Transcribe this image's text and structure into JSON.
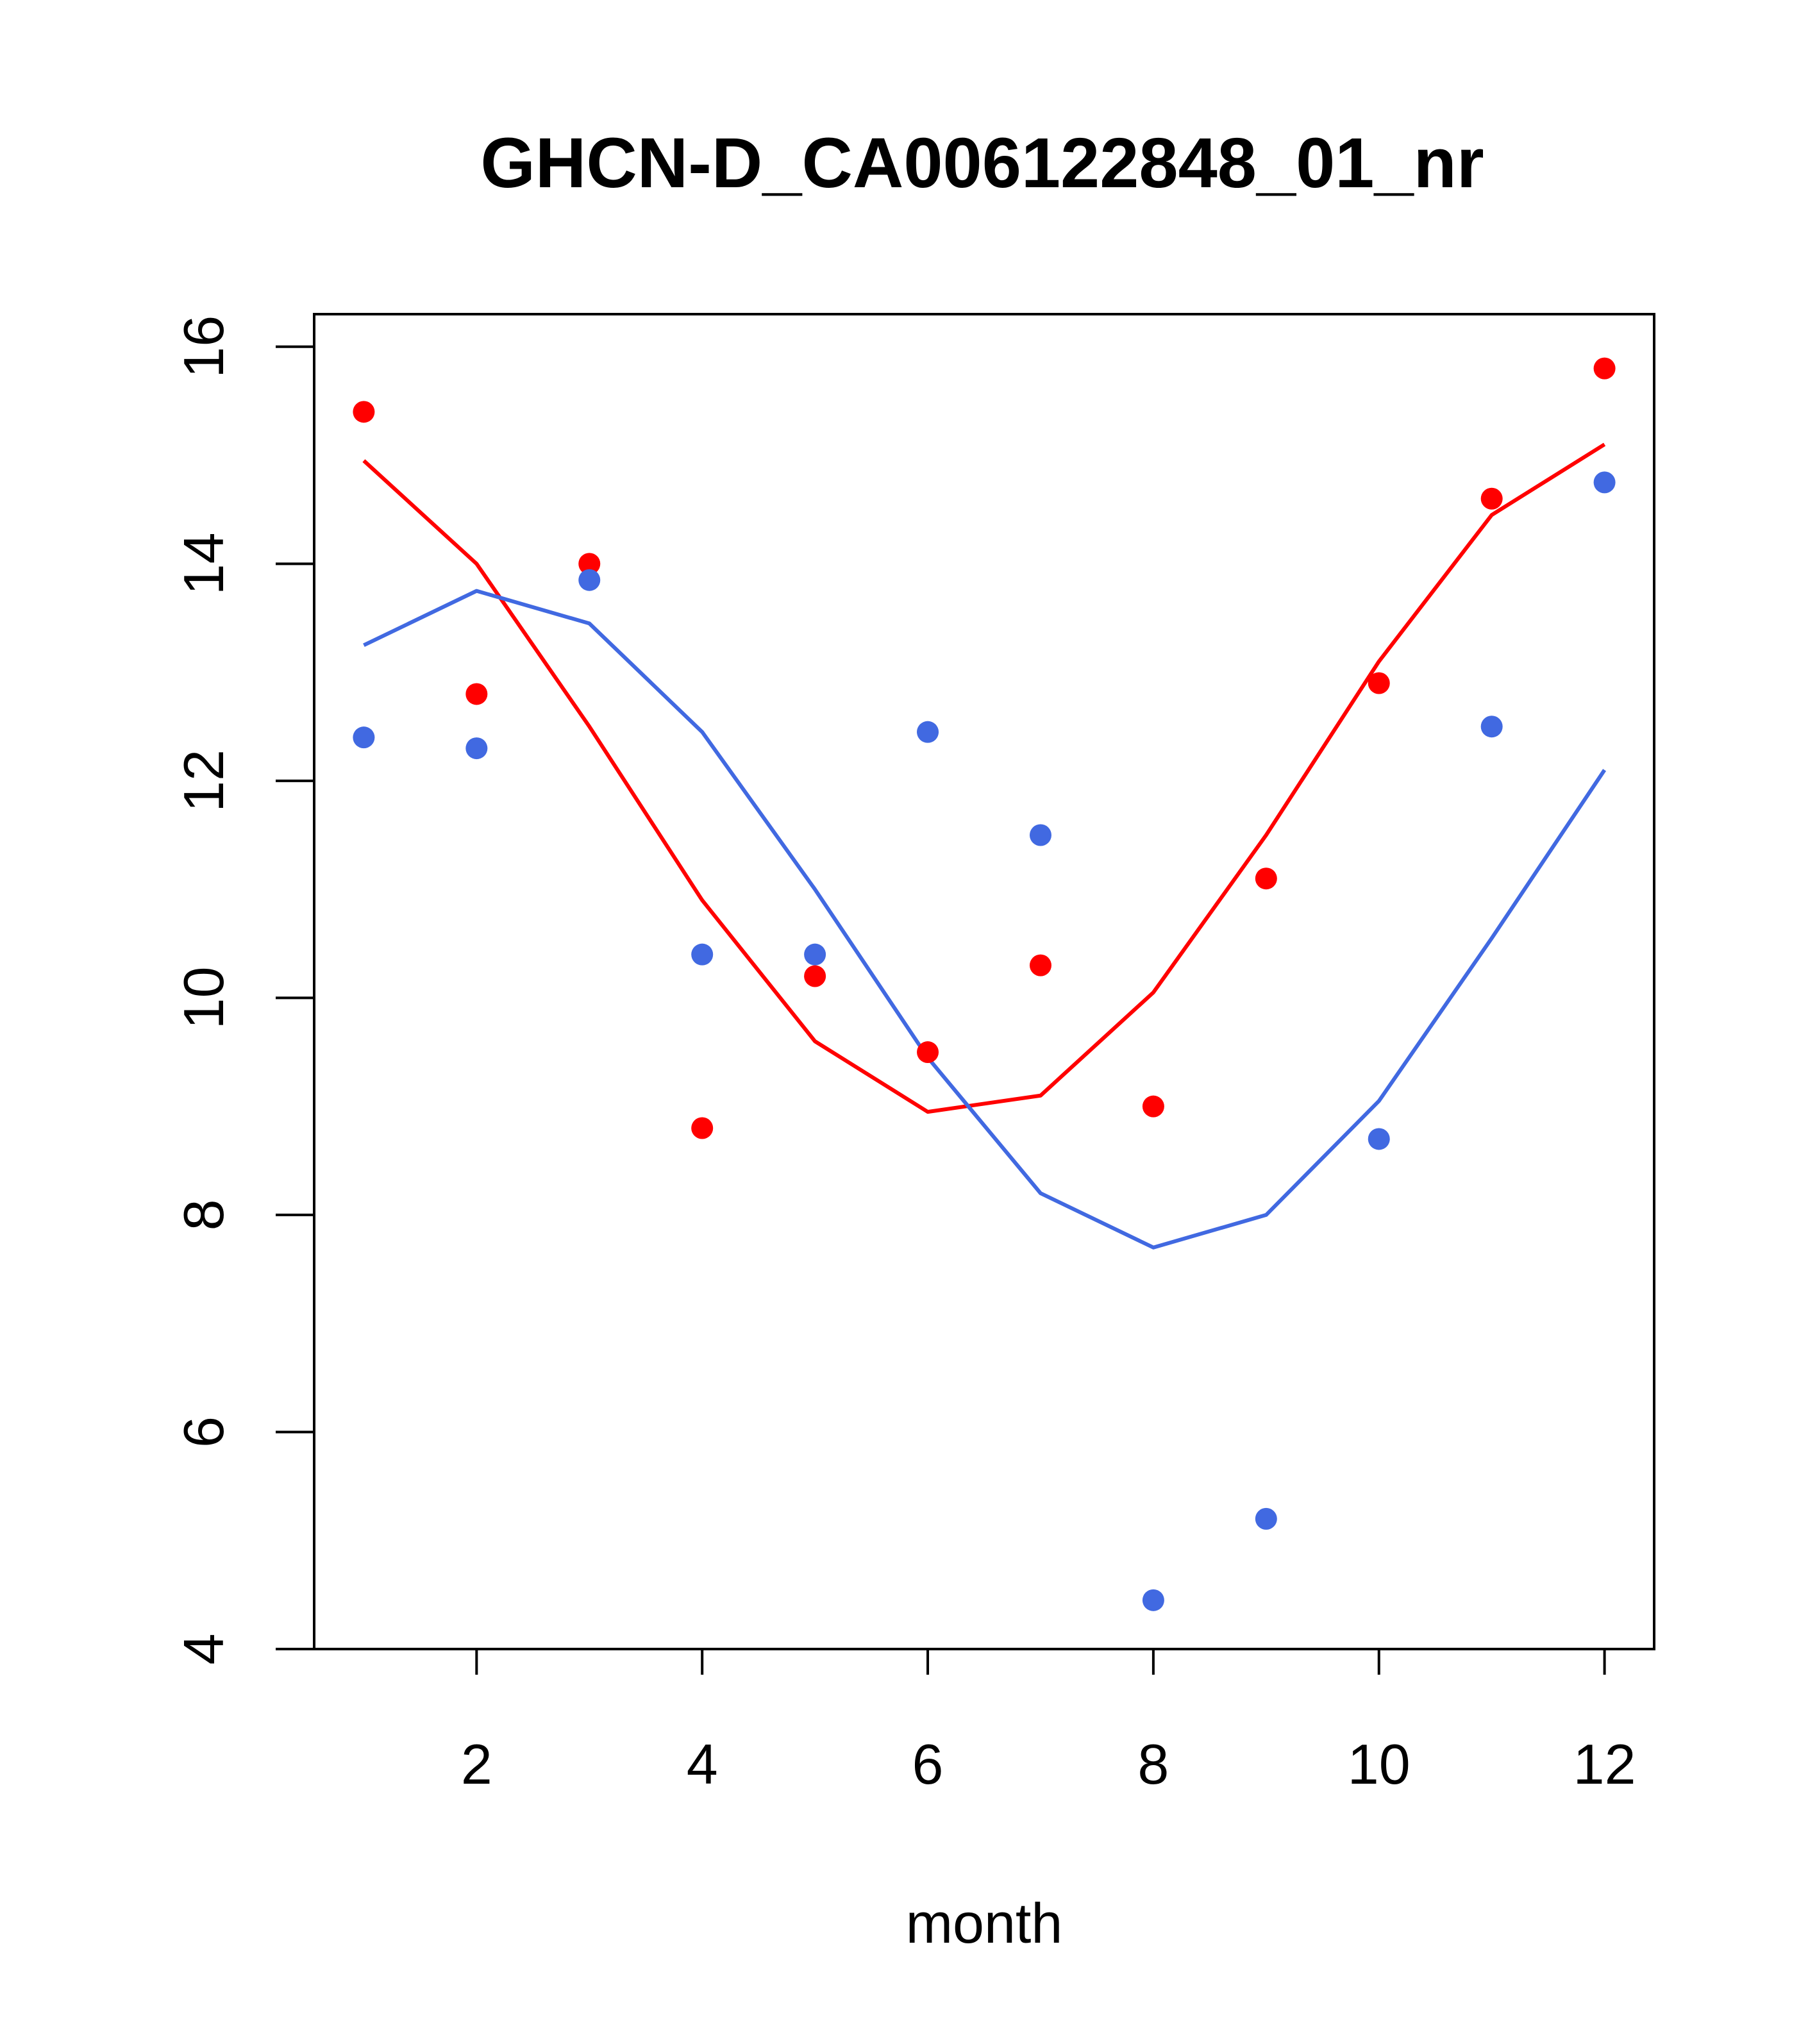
{
  "chart_data": {
    "type": "scatter",
    "title": "GHCN-D_CA006122848_01_nr",
    "xlabel": "month",
    "ylabel": "",
    "xlim": [
      0.56,
      12.44
    ],
    "ylim": [
      4,
      16.3
    ],
    "x_ticks": [
      "2",
      "4",
      "6",
      "8",
      "10",
      "12"
    ],
    "y_ticks": [
      "4",
      "6",
      "8",
      "10",
      "12",
      "14",
      "16"
    ],
    "grid": false,
    "legend": "none",
    "series": [
      {
        "color": "#ff0000",
        "points_x": [
          1,
          2,
          3,
          4,
          5,
          6,
          7,
          8,
          9,
          10,
          11,
          12
        ],
        "points_y": [
          15.4,
          12.8,
          14.0,
          8.8,
          10.2,
          9.5,
          10.3,
          9.0,
          11.1,
          12.9,
          14.6,
          15.8
        ],
        "line_x": [
          1,
          2,
          3,
          4,
          5,
          6,
          7,
          8,
          9,
          10,
          11,
          12
        ],
        "line_y": [
          14.95,
          14.0,
          12.5,
          10.9,
          9.6,
          8.95,
          9.1,
          10.05,
          11.5,
          13.1,
          14.45,
          15.1
        ]
      },
      {
        "color": "#4169e1",
        "points_x": [
          1,
          2,
          3,
          4,
          5,
          6,
          7,
          8,
          9,
          10,
          11,
          12
        ],
        "points_y": [
          12.4,
          12.3,
          13.85,
          10.4,
          10.4,
          12.45,
          11.5,
          4.45,
          5.2,
          8.7,
          12.5,
          14.75
        ],
        "line_x": [
          1,
          2,
          3,
          4,
          5,
          6,
          7,
          8,
          9,
          10,
          11,
          12
        ],
        "line_y": [
          13.25,
          13.75,
          13.45,
          12.45,
          11.0,
          9.45,
          8.2,
          7.7,
          8.0,
          9.05,
          10.55,
          12.1
        ]
      }
    ]
  }
}
